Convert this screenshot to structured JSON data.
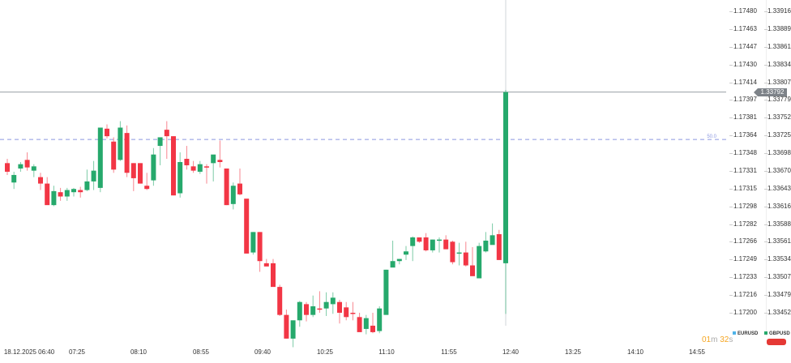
{
  "chart_data": {
    "type": "candlestick",
    "title": "",
    "symbols": [
      "EURUSD",
      "GBPUSD"
    ],
    "primary_axis": {
      "symbol": "EURUSD",
      "ticks": [
        "1.17480",
        "1.17463",
        "1.17447",
        "1.17430",
        "1.17414",
        "1.17397",
        "1.17381",
        "1.17364",
        "1.17348",
        "1.17331",
        "1.17315",
        "1.17298",
        "1.17282",
        "1.17266",
        "1.17249",
        "1.17233",
        "1.17216",
        "1.17200"
      ],
      "ylim": [
        1.17185,
        1.17485
      ]
    },
    "secondary_axis": {
      "symbol": "GBPUSD",
      "ticks": [
        "1.33916",
        "1.33889",
        "1.33861",
        "1.33834",
        "1.33807",
        "1.33779",
        "1.33752",
        "1.33725",
        "1.33698",
        "1.33670",
        "1.33643",
        "1.33616",
        "1.33588",
        "1.33561",
        "1.33534",
        "1.33507",
        "1.33479",
        "1.33452"
      ],
      "current_price": "1.33792"
    },
    "x_ticks": [
      "18.12.2025  06:40",
      "07:25",
      "08:10",
      "08:55",
      "09:40",
      "10:25",
      "11:10",
      "11:55",
      "12:40",
      "13:25",
      "14:10",
      "14:55"
    ],
    "level_line": {
      "label": "50.0",
      "value": 1.17361
    },
    "current_price_line": 1.17405,
    "candles": [
      [
        1.17339,
        1.17343,
        1.17328,
        1.17331
      ],
      [
        1.17321,
        1.17331,
        1.17315,
        1.17328
      ],
      [
        1.17334,
        1.1734,
        1.17331,
        1.17338
      ],
      [
        1.17342,
        1.17349,
        1.17332,
        1.17335
      ],
      [
        1.17332,
        1.17338,
        1.17326,
        1.17336
      ],
      [
        1.17326,
        1.1733,
        1.17314,
        1.1732
      ],
      [
        1.1732,
        1.17326,
        1.17301,
        1.173
      ],
      [
        1.173,
        1.17318,
        1.17299,
        1.17313
      ],
      [
        1.17312,
        1.17316,
        1.17304,
        1.17308
      ],
      [
        1.17308,
        1.17316,
        1.17304,
        1.17314
      ],
      [
        1.17312,
        1.17316,
        1.17308,
        1.17315
      ],
      [
        1.17314,
        1.17317,
        1.17307,
        1.17312
      ],
      [
        1.17314,
        1.17333,
        1.17313,
        1.17322
      ],
      [
        1.17322,
        1.17341,
        1.17314,
        1.17332
      ],
      [
        1.17316,
        1.17368,
        1.17312,
        1.17372
      ],
      [
        1.17371,
        1.17375,
        1.17362,
        1.17364
      ],
      [
        1.17359,
        1.17363,
        1.1733,
        1.17333
      ],
      [
        1.17342,
        1.17378,
        1.17341,
        1.17372
      ],
      [
        1.17367,
        1.17374,
        1.17326,
        1.1733
      ],
      [
        1.17339,
        1.17339,
        1.17313,
        1.17325
      ],
      [
        1.17339,
        1.17339,
        1.1732,
        1.1732
      ],
      [
        1.17318,
        1.1733,
        1.17314,
        1.17315
      ],
      [
        1.17323,
        1.17353,
        1.17318,
        1.17347
      ],
      [
        1.17355,
        1.17361,
        1.17337,
        1.17363
      ],
      [
        1.1737,
        1.17378,
        1.17343,
        1.17364
      ],
      [
        1.17364,
        1.17364,
        1.17309,
        1.17309
      ],
      [
        1.17311,
        1.17349,
        1.17307,
        1.1734
      ],
      [
        1.17343,
        1.17355,
        1.17333,
        1.17337
      ],
      [
        1.17336,
        1.17341,
        1.1733,
        1.17332
      ],
      [
        1.17331,
        1.17341,
        1.17329,
        1.17338
      ],
      [
        1.17336,
        1.17338,
        1.1732,
        1.17335
      ],
      [
        1.17339,
        1.17346,
        1.17322,
        1.17347
      ],
      [
        1.17342,
        1.1736,
        1.17335,
        1.1734
      ],
      [
        1.17334,
        1.17334,
        1.173,
        1.173
      ],
      [
        1.17301,
        1.17321,
        1.17296,
        1.17318
      ],
      [
        1.1732,
        1.17334,
        1.17309,
        1.1731
      ],
      [
        1.17306,
        1.17305,
        1.17255,
        1.17255
      ],
      [
        1.17256,
        1.17275,
        1.17254,
        1.17275
      ],
      [
        1.17275,
        1.17275,
        1.17238,
        1.17248
      ],
      [
        1.17246,
        1.1725,
        1.17245,
        1.17243
      ],
      [
        1.17246,
        1.1725,
        1.17225,
        1.17224
      ],
      [
        1.17224,
        1.17226,
        1.17197,
        1.17198
      ],
      [
        1.17198,
        1.17203,
        1.17176,
        1.17176
      ],
      [
        1.17176,
        1.17189,
        1.17168,
        1.17193
      ],
      [
        1.17193,
        1.17211,
        1.17187,
        1.1721
      ],
      [
        1.17208,
        1.1721,
        1.17192,
        1.17198
      ],
      [
        1.17198,
        1.17216,
        1.17196,
        1.17206
      ],
      [
        1.17204,
        1.1722,
        1.172,
        1.17203
      ],
      [
        1.17204,
        1.17219,
        1.17197,
        1.1721
      ],
      [
        1.17208,
        1.17219,
        1.17199,
        1.17214
      ],
      [
        1.1721,
        1.17212,
        1.1719,
        1.172
      ],
      [
        1.17205,
        1.1721,
        1.17193,
        1.17196
      ],
      [
        1.172,
        1.1721,
        1.17193,
        1.17199
      ],
      [
        1.17196,
        1.172,
        1.17183,
        1.17182
      ],
      [
        1.17185,
        1.17198,
        1.1718,
        1.17195
      ],
      [
        1.17188,
        1.172,
        1.17181,
        1.17182
      ],
      [
        1.17183,
        1.17206,
        1.17181,
        1.17204
      ],
      [
        1.17198,
        1.1724,
        1.17199,
        1.1724
      ],
      [
        1.17242,
        1.17267,
        1.17243,
        1.17248
      ],
      [
        1.17248,
        1.1725,
        1.17245,
        1.1725
      ],
      [
        1.17254,
        1.17262,
        1.17249,
        1.17257
      ],
      [
        1.17262,
        1.17271,
        1.17248,
        1.1727
      ],
      [
        1.1727,
        1.1727,
        1.17265,
        1.17266
      ],
      [
        1.1727,
        1.17274,
        1.17257,
        1.17258
      ],
      [
        1.17258,
        1.17268,
        1.17256,
        1.17268
      ],
      [
        1.17268,
        1.1727,
        1.17256,
        1.17268
      ],
      [
        1.17268,
        1.17272,
        1.17259,
        1.17259
      ],
      [
        1.17266,
        1.17267,
        1.17245,
        1.17247
      ],
      [
        1.17255,
        1.17265,
        1.17244,
        1.17256
      ],
      [
        1.17256,
        1.17266,
        1.17243,
        1.17244
      ],
      [
        1.17244,
        1.17261,
        1.17237,
        1.17234
      ],
      [
        1.17232,
        1.17265,
        1.17232,
        1.17262
      ],
      [
        1.17257,
        1.17275,
        1.17256,
        1.17267
      ],
      [
        1.17263,
        1.17283,
        1.17264,
        1.17272
      ],
      [
        1.17273,
        1.17277,
        1.17249,
        1.17249
      ],
      [
        1.17246,
        1.17407,
        1.17199,
        1.17405
      ]
    ]
  },
  "footer": {
    "timer_minutes": "01",
    "timer_m_unit": "m",
    "timer_seconds": "32",
    "timer_s_unit": "s",
    "legend_eurusd": "EURUSD",
    "legend_gbpusd": "GBPUSD"
  },
  "colors": {
    "up": "#26a96c",
    "down": "#f23645",
    "eurusd": "#4fb3e8",
    "gbpusd": "#26a96c",
    "level_line": "#8c98e0"
  }
}
